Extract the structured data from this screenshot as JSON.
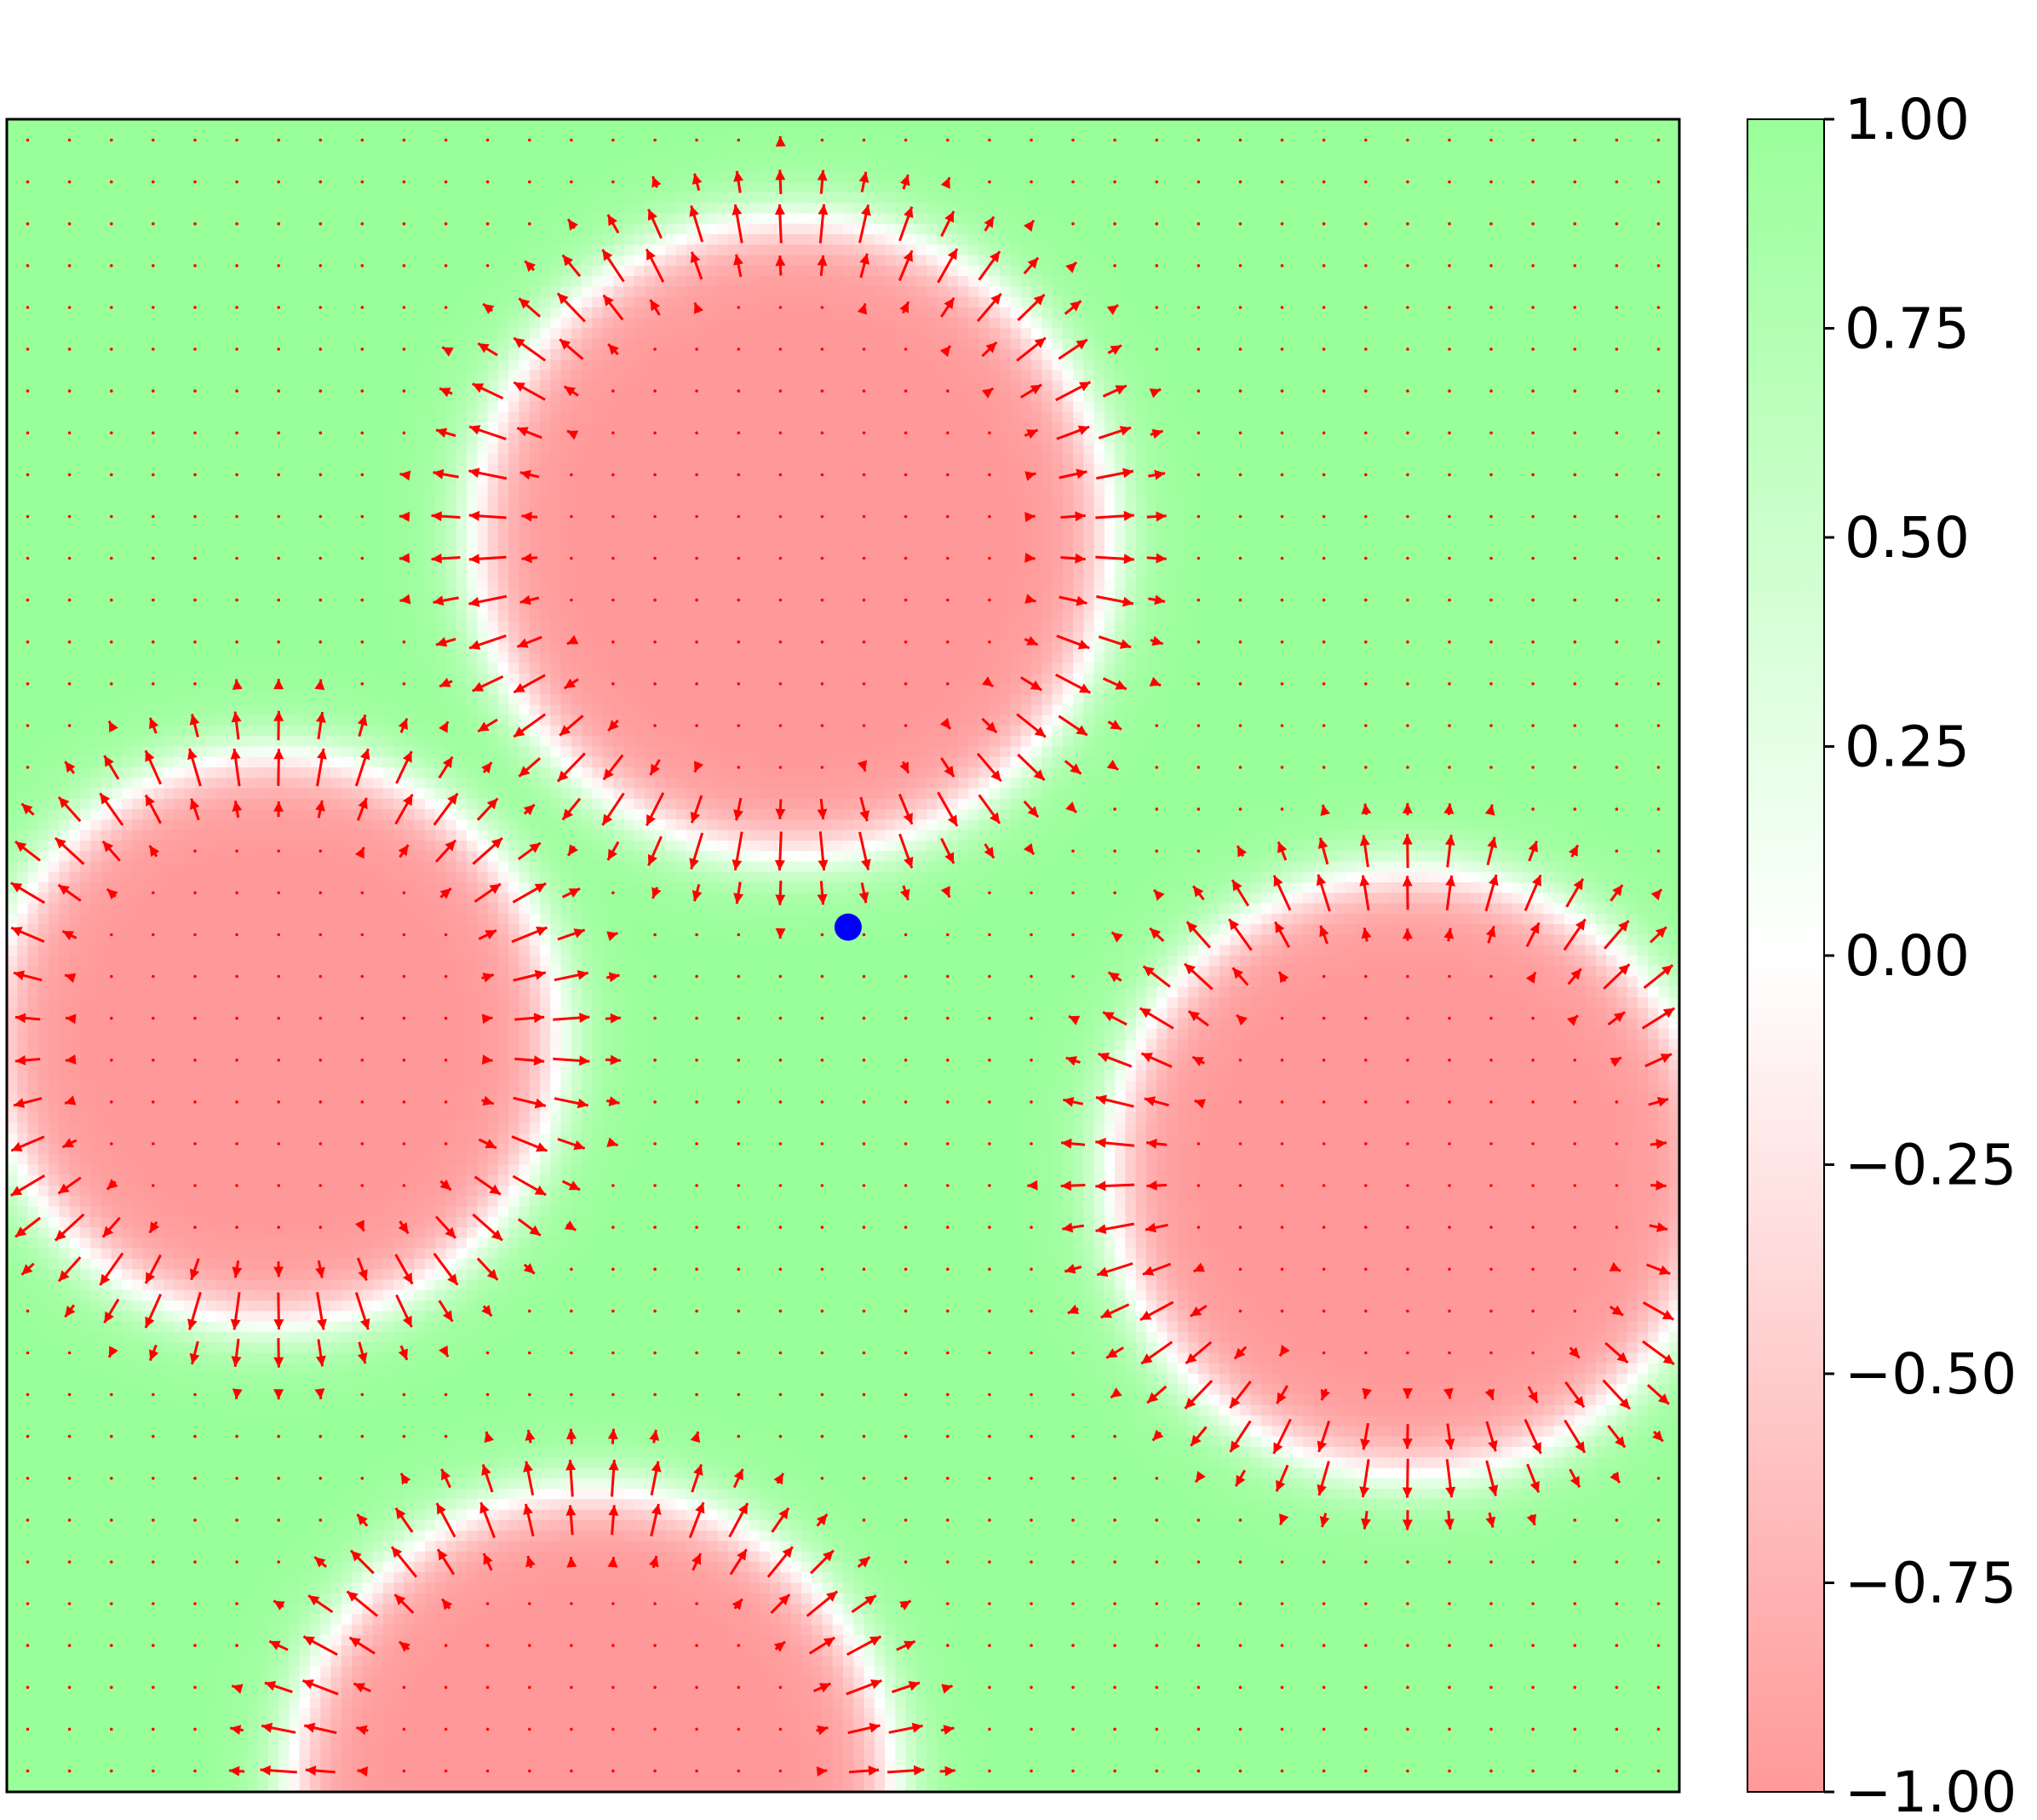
{
  "chart_data": {
    "type": "heatmap",
    "title": "",
    "xlabel": "",
    "ylabel": "",
    "x_ticks_shown": false,
    "y_ticks_shown": false,
    "domain": {
      "x": [
        0,
        1
      ],
      "y": [
        0,
        1
      ]
    },
    "field_values_range": [
      -1.0,
      1.0
    ],
    "regions": {
      "description_values": {
        "inside_droplets": -1.0,
        "background": 1.0,
        "interface": 0.0
      },
      "droplets": [
        {
          "cx": 0.47,
          "cy": 0.75,
          "r": 0.19
        },
        {
          "cx": 0.16,
          "cy": 0.45,
          "r": 0.17
        },
        {
          "cx": 0.84,
          "cy": 0.37,
          "r": 0.18
        },
        {
          "cx": 0.35,
          "cy": 0.0,
          "r": 0.18
        }
      ]
    },
    "marker": {
      "x": 0.503,
      "y": 0.517,
      "color": "#0000ff"
    },
    "quiver": {
      "color": "#ff0000",
      "grid_n": 40
    },
    "colorbar": {
      "min": -1.0,
      "max": 1.0,
      "colors": {
        "low": "#ff9999",
        "mid": "#ffffff",
        "high": "#99ff99"
      },
      "tick_values": [
        1.0,
        0.75,
        0.5,
        0.25,
        0.0,
        -0.25,
        -0.5,
        -0.75,
        -1.0
      ],
      "tick_labels": [
        "1.00",
        "0.75",
        "0.50",
        "0.25",
        "0.00",
        "−0.25",
        "−0.50",
        "−0.75",
        "−1.00"
      ]
    }
  }
}
